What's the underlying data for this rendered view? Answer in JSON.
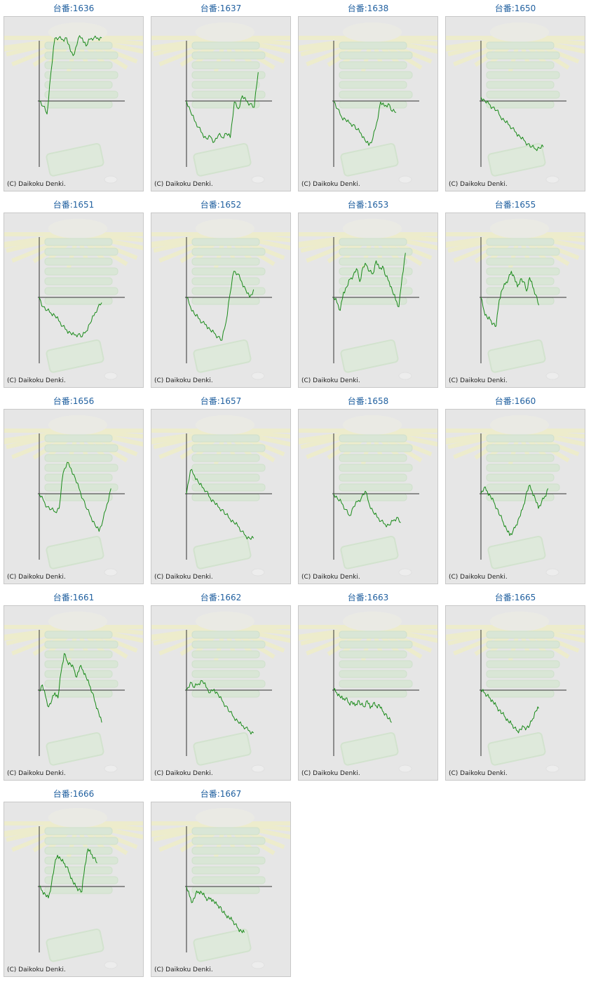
{
  "credit": "(C) Daikoku Denki.",
  "colors": {
    "title": "#1f5f9f",
    "line": "#1a8a1a",
    "frame_bg": "#e6e6e6",
    "axis": "#333333"
  },
  "chart_data": [
    {
      "type": "line",
      "title": "台番:1636",
      "x": [
        0,
        1,
        2,
        3,
        4,
        5,
        6,
        7,
        8,
        9,
        10,
        11,
        12,
        13,
        14,
        15,
        16
      ],
      "y": [
        0,
        -10,
        -25,
        55,
        120,
        140,
        118,
        132,
        95,
        90,
        120,
        125,
        105,
        118,
        140,
        132,
        140
      ]
    },
    {
      "type": "line",
      "title": "台番:1637",
      "x": [
        0,
        1,
        2,
        3,
        4,
        5,
        6,
        7,
        8,
        9,
        10,
        11,
        12,
        13,
        14,
        15,
        16,
        17,
        18
      ],
      "y": [
        0,
        -20,
        -38,
        -50,
        -62,
        -72,
        -68,
        -78,
        -65,
        -70,
        -62,
        -70,
        -2,
        -15,
        10,
        0,
        -5,
        -12,
        55
      ]
    },
    {
      "type": "line",
      "title": "台番:1638",
      "x": [
        0,
        1,
        2,
        3,
        4,
        5,
        6,
        7,
        8,
        9,
        10,
        11,
        12,
        13,
        14,
        15,
        16
      ],
      "y": [
        0,
        -15,
        -30,
        -35,
        -42,
        -45,
        -55,
        -62,
        -75,
        -85,
        -72,
        -42,
        -2,
        -10,
        -5,
        -20,
        -22
      ]
    },
    {
      "type": "line",
      "title": "台番:1650",
      "x": [
        0,
        1,
        2,
        3,
        4,
        5,
        6,
        7,
        8,
        9,
        10,
        11,
        12,
        13,
        14,
        15,
        16
      ],
      "y": [
        8,
        0,
        -5,
        -12,
        -18,
        -30,
        -38,
        -45,
        -52,
        -60,
        -68,
        -75,
        -82,
        -88,
        -92,
        -90,
        -88
      ]
    },
    {
      "type": "line",
      "title": "台番:1651",
      "x": [
        0,
        1,
        2,
        3,
        4,
        5,
        6,
        7,
        8,
        9,
        10,
        11,
        12,
        13,
        14,
        15,
        16
      ],
      "y": [
        0,
        -18,
        -25,
        -30,
        -35,
        -45,
        -55,
        -62,
        -68,
        -72,
        -70,
        -75,
        -65,
        -50,
        -35,
        -20,
        -10
      ]
    },
    {
      "type": "line",
      "title": "台番:1652",
      "x": [
        0,
        1,
        2,
        3,
        4,
        5,
        6,
        7,
        8,
        9,
        10,
        11,
        12,
        13,
        14,
        15,
        16,
        17
      ],
      "y": [
        0,
        -18,
        -32,
        -40,
        -48,
        -52,
        -62,
        -68,
        -75,
        -82,
        -48,
        5,
        50,
        45,
        30,
        15,
        0,
        15
      ]
    },
    {
      "type": "line",
      "title": "台番:1653",
      "x": [
        0,
        1,
        2,
        3,
        4,
        5,
        6,
        7,
        8,
        9,
        10,
        11,
        12,
        13,
        14,
        15,
        16,
        17,
        18,
        19,
        20,
        21,
        22
      ],
      "y": [
        0,
        -10,
        -25,
        10,
        20,
        35,
        42,
        55,
        30,
        58,
        62,
        50,
        45,
        70,
        55,
        60,
        40,
        30,
        12,
        -5,
        -18,
        40,
        85
      ]
    },
    {
      "type": "line",
      "title": "台番:1655",
      "x": [
        0,
        1,
        2,
        3,
        4,
        5,
        6,
        7,
        8,
        9,
        10,
        11,
        12,
        13,
        14,
        15,
        16,
        17,
        18,
        19
      ],
      "y": [
        0,
        -25,
        -38,
        -42,
        -50,
        -55,
        -5,
        15,
        25,
        35,
        50,
        38,
        20,
        35,
        30,
        12,
        38,
        20,
        5,
        -15
      ]
    },
    {
      "type": "line",
      "title": "台番:1656",
      "x": [
        0,
        1,
        2,
        3,
        4,
        5,
        6,
        7,
        8,
        9,
        10,
        11,
        12,
        13,
        14,
        15,
        16,
        17,
        18
      ],
      "y": [
        0,
        -12,
        -25,
        -30,
        -35,
        -28,
        40,
        60,
        48,
        30,
        10,
        -10,
        -30,
        -45,
        -60,
        -72,
        -50,
        -20,
        10
      ]
    },
    {
      "type": "line",
      "title": "台番:1657",
      "x": [
        0,
        1,
        2,
        3,
        4,
        5,
        6,
        7,
        8,
        9,
        10,
        11,
        12,
        13,
        14,
        15,
        16,
        17
      ],
      "y": [
        0,
        45,
        35,
        22,
        12,
        5,
        -8,
        -15,
        -25,
        -30,
        -40,
        -48,
        -55,
        -62,
        -72,
        -80,
        -85,
        -85
      ]
    },
    {
      "type": "line",
      "title": "台番:1658",
      "x": [
        0,
        1,
        2,
        3,
        4,
        5,
        6,
        7,
        8,
        9,
        10,
        11,
        12,
        13,
        14,
        15,
        16,
        17
      ],
      "y": [
        0,
        -10,
        -18,
        -30,
        -42,
        -25,
        -15,
        -8,
        5,
        -20,
        -35,
        -45,
        -52,
        -58,
        -60,
        -52,
        -45,
        -55
      ]
    },
    {
      "type": "line",
      "title": "台番:1660",
      "x": [
        0,
        1,
        2,
        3,
        4,
        5,
        6,
        7,
        8,
        9,
        10,
        11,
        12,
        13,
        14,
        15,
        16,
        17,
        18,
        19,
        20,
        21
      ],
      "y": [
        0,
        12,
        5,
        -5,
        -15,
        -28,
        -42,
        -55,
        -68,
        -80,
        -72,
        -60,
        -45,
        -30,
        -5,
        15,
        5,
        -10,
        -28,
        -15,
        -5,
        10
      ]
    },
    {
      "type": "line",
      "title": "台番:1661",
      "x": [
        0,
        1,
        2,
        3,
        4,
        5,
        6,
        7,
        8,
        9,
        10,
        11,
        12,
        13,
        14,
        15,
        16,
        17,
        18,
        19,
        20
      ],
      "y": [
        0,
        10,
        -12,
        -32,
        -20,
        -5,
        -15,
        35,
        70,
        55,
        50,
        42,
        25,
        45,
        38,
        25,
        10,
        -5,
        -25,
        -42,
        -62
      ]
    },
    {
      "type": "line",
      "title": "台番:1662",
      "x": [
        0,
        1,
        2,
        3,
        4,
        5,
        6,
        7,
        8,
        9,
        10,
        11,
        12,
        13,
        14,
        15,
        16,
        17
      ],
      "y": [
        0,
        15,
        5,
        12,
        18,
        5,
        -5,
        2,
        -8,
        -20,
        -30,
        -42,
        -52,
        -60,
        -68,
        -72,
        -78,
        -82
      ]
    },
    {
      "type": "line",
      "title": "台番:1663",
      "x": [
        0,
        1,
        2,
        3,
        4,
        5,
        6,
        7,
        8,
        9,
        10,
        11,
        12,
        13,
        14,
        15,
        16,
        17,
        18,
        19
      ],
      "y": [
        0,
        -5,
        -12,
        -18,
        -15,
        -25,
        -22,
        -30,
        -20,
        -28,
        -32,
        -20,
        -35,
        -25,
        -30,
        -28,
        -40,
        -45,
        -55,
        -62
      ]
    },
    {
      "type": "line",
      "title": "台番:1665",
      "x": [
        0,
        1,
        2,
        3,
        4,
        5,
        6,
        7,
        8,
        9,
        10,
        11,
        12,
        13,
        14,
        15,
        16,
        17,
        18,
        19
      ],
      "y": [
        0,
        -5,
        -10,
        -15,
        -22,
        -30,
        -38,
        -45,
        -52,
        -60,
        -65,
        -72,
        -78,
        -75,
        -70,
        -72,
        -68,
        -55,
        -40,
        -35
      ]
    },
    {
      "type": "line",
      "title": "台番:1666",
      "x": [
        0,
        1,
        2,
        3,
        4,
        5,
        6,
        7,
        8,
        9,
        10,
        11,
        12,
        13,
        14,
        15,
        16,
        17,
        18,
        19
      ],
      "y": [
        0,
        -8,
        -15,
        -22,
        5,
        40,
        60,
        52,
        45,
        38,
        25,
        10,
        0,
        -5,
        -10,
        40,
        72,
        62,
        55,
        45
      ]
    },
    {
      "type": "line",
      "title": "台番:1667",
      "x": [
        0,
        1,
        2,
        3,
        4,
        5,
        6,
        7,
        8,
        9,
        10,
        11,
        12,
        13,
        14,
        15,
        16,
        17,
        18,
        19
      ],
      "y": [
        0,
        -18,
        -30,
        -15,
        -10,
        -12,
        -20,
        -25,
        -22,
        -28,
        -35,
        -38,
        -50,
        -55,
        -60,
        -65,
        -72,
        -80,
        -85,
        -88
      ]
    }
  ]
}
